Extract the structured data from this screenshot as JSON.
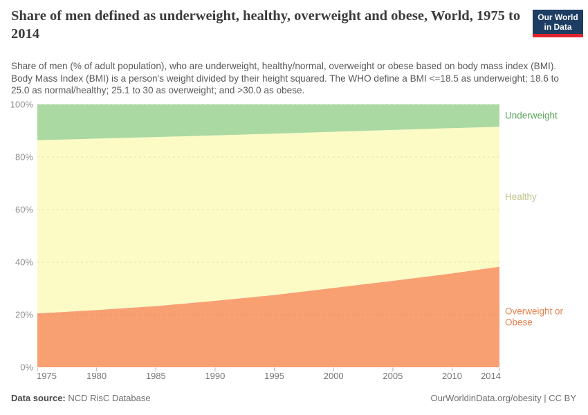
{
  "header": {
    "title": "Share of men defined as underweight, healthy, overweight and obese, World, 1975 to 2014",
    "subtitle": "Share of men (% of adult population), who are underweight, healthy/normal, overweight or obese based on body mass index (BMI). Body Mass Index (BMI) is a person's weight divided by their height squared. The WHO define a BMI <=18.5 as underweight; 18.6 to 25.0 as normal/healthy; 25.1 to 30 as overweight; and >30.0 as obese.",
    "logo": {
      "line1": "Our World",
      "line2": "in Data",
      "bg_color": "#1d3d63",
      "stripe_color": "#e0232c"
    }
  },
  "chart_data": {
    "type": "area",
    "stacked": true,
    "title": "Share of men defined as underweight, healthy, overweight and obese, World, 1975 to 2014",
    "xlabel": "",
    "ylabel": "",
    "xlim": [
      1975,
      2014
    ],
    "ylim": [
      0,
      100
    ],
    "grid": "dashed-horizontal",
    "legend_position": "right-inline",
    "x": [
      1975,
      1980,
      1985,
      1990,
      1995,
      2000,
      2005,
      2010,
      2014
    ],
    "series": [
      {
        "name": "Overweight or Obese",
        "label_lines": [
          "Overweight or",
          "Obese"
        ],
        "values": [
          20.5,
          21.8,
          23.3,
          25.3,
          27.5,
          30.2,
          32.9,
          35.7,
          38.3
        ],
        "area_color": "#f9a073",
        "label_color": "#e8814f"
      },
      {
        "name": "Healthy",
        "label_lines": [
          "Healthy"
        ],
        "values": [
          65.9,
          65.2,
          64.3,
          62.9,
          61.4,
          59.4,
          57.4,
          55.3,
          53.2
        ],
        "area_color": "#fcfbc6",
        "label_color": "#c2c28d"
      },
      {
        "name": "Underweight",
        "label_lines": [
          "Underweight"
        ],
        "values": [
          13.6,
          13.0,
          12.4,
          11.8,
          11.1,
          10.4,
          9.7,
          9.0,
          8.5
        ],
        "area_color": "#aad9a2",
        "label_color": "#5aa45a"
      }
    ],
    "xticks": [
      "1975",
      "1980",
      "1985",
      "1990",
      "1995",
      "2000",
      "2005",
      "2010",
      "2014"
    ],
    "yticks": [
      "0%",
      "20%",
      "40%",
      "60%",
      "80%",
      "100%"
    ],
    "ytick_values": [
      0,
      20,
      40,
      60,
      80,
      100
    ]
  },
  "footer": {
    "source_label": "Data source:",
    "source_value": "NCD RisC Database",
    "credit": "OurWorldinData.org/obesity | CC BY"
  }
}
